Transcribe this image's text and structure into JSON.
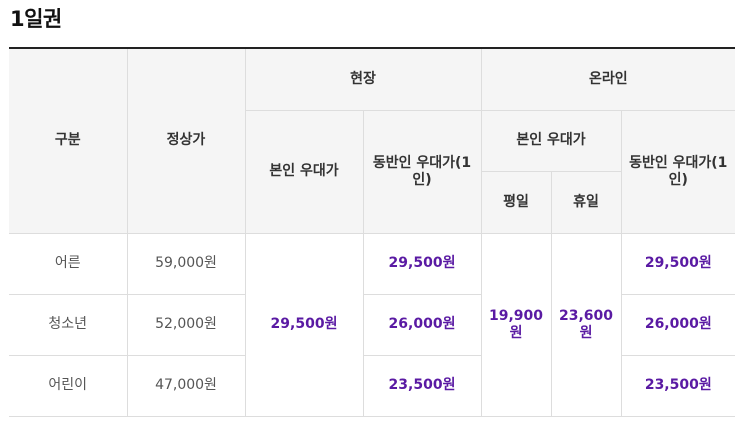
{
  "title": "1일권",
  "table": {
    "headers": {
      "category": "구분",
      "regular": "정상가",
      "onsite": "현장",
      "online": "온라인",
      "self_discount": "본인 우대가",
      "companion_discount": "동반인 우대가(1인)",
      "weekday": "평일",
      "holiday": "휴일"
    },
    "rows": [
      {
        "category": "어른",
        "regular": "59,000원",
        "onsite_companion": "29,500원",
        "online_companion": "29,500원"
      },
      {
        "category": "청소년",
        "regular": "52,000원",
        "onsite_companion": "26,000원",
        "online_companion": "26,000원"
      },
      {
        "category": "어린이",
        "regular": "47,000원",
        "onsite_companion": "23,500원",
        "online_companion": "23,500원"
      }
    ],
    "onsite_self": "29,500원",
    "online_self_weekday": "19,900원",
    "online_self_holiday": "23,600원"
  }
}
